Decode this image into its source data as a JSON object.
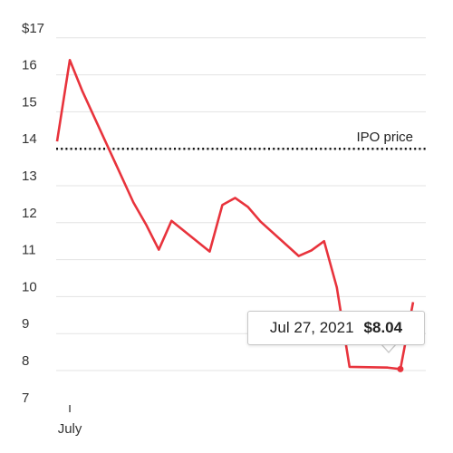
{
  "chart_data": {
    "type": "line",
    "title": "",
    "xlabel": "",
    "ylabel": "",
    "ylim": [
      6.7,
      17
    ],
    "y_ticks": [
      {
        "value": 17,
        "label": "$17"
      },
      {
        "value": 16,
        "label": "16"
      },
      {
        "value": 15,
        "label": "15"
      },
      {
        "value": 14,
        "label": "14"
      },
      {
        "value": 13,
        "label": "13"
      },
      {
        "value": 12,
        "label": "12"
      },
      {
        "value": 11,
        "label": "11"
      },
      {
        "value": 10,
        "label": "10"
      },
      {
        "value": 9,
        "label": "9"
      },
      {
        "value": 8,
        "label": "8"
      },
      {
        "value": 7,
        "label": "7"
      }
    ],
    "x_ticks": [
      {
        "value": "2021-07-01",
        "label": "July"
      }
    ],
    "xlim": [
      "2021-06-30",
      "2021-07-29"
    ],
    "grid": true,
    "line_color": "#e8333c",
    "series": [
      {
        "x": [
          "2021-06-30",
          "2021-07-01",
          "2021-07-02",
          "2021-07-06",
          "2021-07-07",
          "2021-07-08",
          "2021-07-09",
          "2021-07-12",
          "2021-07-13",
          "2021-07-14",
          "2021-07-15",
          "2021-07-16",
          "2021-07-19",
          "2021-07-20",
          "2021-07-21",
          "2021-07-22",
          "2021-07-23",
          "2021-07-26",
          "2021-07-27",
          "2021-07-28"
        ],
        "values": [
          14.2,
          16.4,
          15.55,
          12.55,
          11.95,
          11.27,
          12.05,
          11.22,
          12.48,
          12.67,
          12.43,
          12.03,
          11.1,
          11.25,
          11.5,
          10.25,
          8.1,
          8.08,
          8.04,
          9.85
        ]
      }
    ],
    "reference_line": {
      "value": 14,
      "label": "IPO price"
    },
    "tooltip": {
      "date": "Jul 27, 2021",
      "value": "$8.04",
      "point_index": 18
    }
  }
}
